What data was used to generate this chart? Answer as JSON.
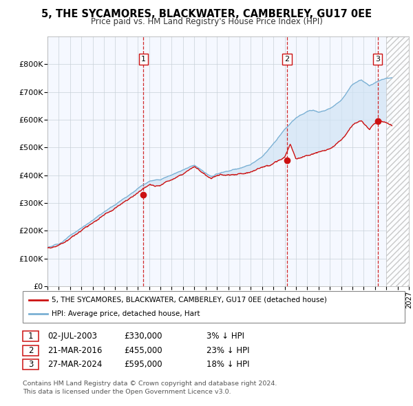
{
  "title": "5, THE SYCAMORES, BLACKWATER, CAMBERLEY, GU17 0EE",
  "subtitle": "Price paid vs. HM Land Registry's House Price Index (HPI)",
  "xlim_start": 1995.0,
  "xlim_end": 2027.0,
  "ylim_bottom": 0,
  "ylim_top": 900000,
  "yticks": [
    0,
    100000,
    200000,
    300000,
    400000,
    500000,
    600000,
    700000,
    800000
  ],
  "ytick_labels": [
    "£0",
    "£100K",
    "£200K",
    "£300K",
    "£400K",
    "£500K",
    "£600K",
    "£700K",
    "£800K"
  ],
  "sale_dates": [
    2003.5,
    2016.22,
    2024.24
  ],
  "sale_prices": [
    330000,
    455000,
    595000
  ],
  "sale_labels": [
    "1",
    "2",
    "3"
  ],
  "hpi_color": "#7ab0d4",
  "price_color": "#cc1111",
  "vline_color": "#cc1111",
  "shade_color": "#d0e4f5",
  "legend_price_label": "5, THE SYCAMORES, BLACKWATER, CAMBERLEY, GU17 0EE (detached house)",
  "legend_hpi_label": "HPI: Average price, detached house, Hart",
  "table_rows": [
    [
      "1",
      "02-JUL-2003",
      "£330,000",
      "3% ↓ HPI"
    ],
    [
      "2",
      "21-MAR-2016",
      "£455,000",
      "23% ↓ HPI"
    ],
    [
      "3",
      "27-MAR-2024",
      "£595,000",
      "18% ↓ HPI"
    ]
  ],
  "footnote1": "Contains HM Land Registry data © Crown copyright and database right 2024.",
  "footnote2": "This data is licensed under the Open Government Licence v3.0.",
  "background_color": "#ffffff",
  "plot_bg_color": "#f5f8ff"
}
